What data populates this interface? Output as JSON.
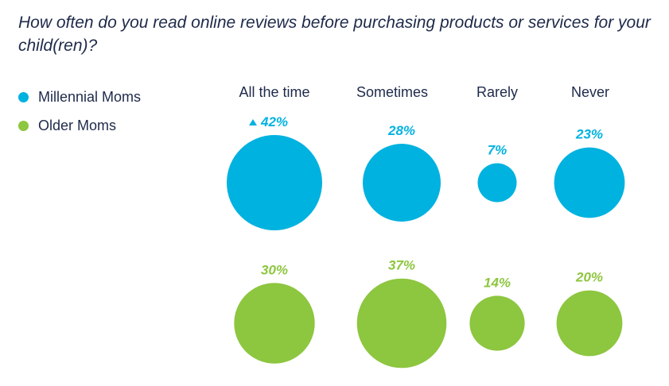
{
  "chart_data": {
    "type": "bubble",
    "title": "How often do you read online reviews before purchasing products or services for your child(ren)?",
    "categories": [
      "All the time",
      "Sometimes",
      "Rarely",
      "Never"
    ],
    "series": [
      {
        "name": "Millennial Moms",
        "color": "#00b2e0",
        "values": [
          42,
          28,
          7,
          23
        ],
        "labels": [
          "42%",
          "28%",
          "7%",
          "23%"
        ],
        "up_marker": [
          true,
          false,
          false,
          false
        ]
      },
      {
        "name": "Older Moms",
        "color": "#8dc63f",
        "values": [
          30,
          37,
          14,
          20
        ],
        "labels": [
          "30%",
          "37%",
          "14%",
          "20%"
        ],
        "up_marker": [
          false,
          false,
          false,
          false
        ]
      }
    ],
    "unit": "%"
  }
}
